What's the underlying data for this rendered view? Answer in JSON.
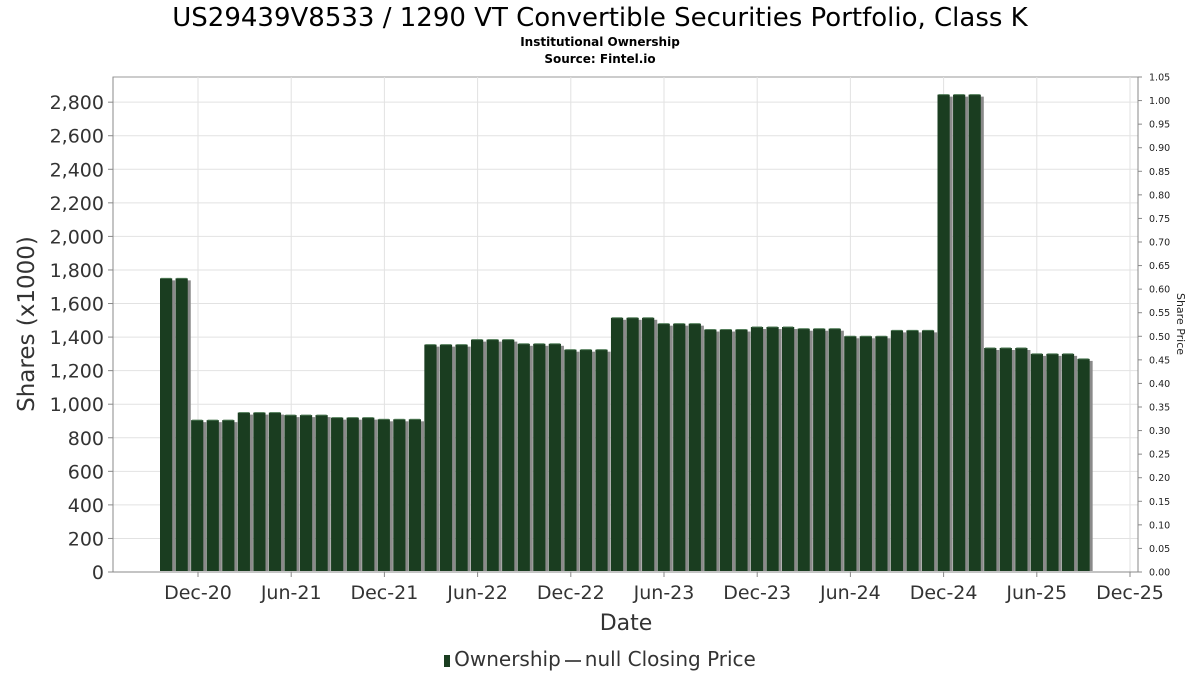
{
  "chart_data": {
    "type": "bar",
    "title": "US29439V8533 / 1290 VT Convertible Securities Portfolio, Class K",
    "subtitle": "Institutional Ownership",
    "source": "Source: Fintel.io",
    "xlabel": "Date",
    "ylabel": "Shares (x1000)",
    "y2label": "Share Price",
    "ylim": [
      0,
      2950
    ],
    "y2lim": [
      0,
      1.05
    ],
    "yticks": [
      "0",
      "200",
      "400",
      "600",
      "800",
      "1,000",
      "1,200",
      "1,400",
      "1,600",
      "1,800",
      "2,000",
      "2,200",
      "2,400",
      "2,600",
      "2,800"
    ],
    "y2ticks": [
      "0.00",
      "0.05",
      "0.10",
      "0.15",
      "0.20",
      "0.25",
      "0.30",
      "0.35",
      "0.40",
      "0.45",
      "0.50",
      "0.55",
      "0.60",
      "0.65",
      "0.70",
      "0.75",
      "0.80",
      "0.85",
      "0.90",
      "0.95",
      "1.00",
      "1.05"
    ],
    "xticks": [
      "Dec-20",
      "Jun-21",
      "Dec-21",
      "Jun-22",
      "Dec-22",
      "Jun-23",
      "Dec-23",
      "Jun-24",
      "Dec-24",
      "Jun-25",
      "Dec-25"
    ],
    "grid": true,
    "legend_position": "bottom",
    "series": [
      {
        "name": "Ownership",
        "color": "#1a3d20",
        "values": [
          1750,
          1750,
          905,
          905,
          905,
          950,
          950,
          950,
          935,
          935,
          935,
          920,
          920,
          920,
          910,
          910,
          910,
          1355,
          1355,
          1355,
          1385,
          1385,
          1385,
          1360,
          1360,
          1360,
          1325,
          1325,
          1325,
          1515,
          1515,
          1515,
          1480,
          1480,
          1480,
          1445,
          1445,
          1445,
          1460,
          1460,
          1460,
          1450,
          1450,
          1450,
          1405,
          1405,
          1405,
          1440,
          1440,
          1440,
          2845,
          2845,
          2845,
          1335,
          1335,
          1335,
          1300,
          1300,
          1300,
          1270
        ]
      }
    ],
    "legend": {
      "ownership": "Ownership",
      "price": "null Closing Price"
    }
  }
}
